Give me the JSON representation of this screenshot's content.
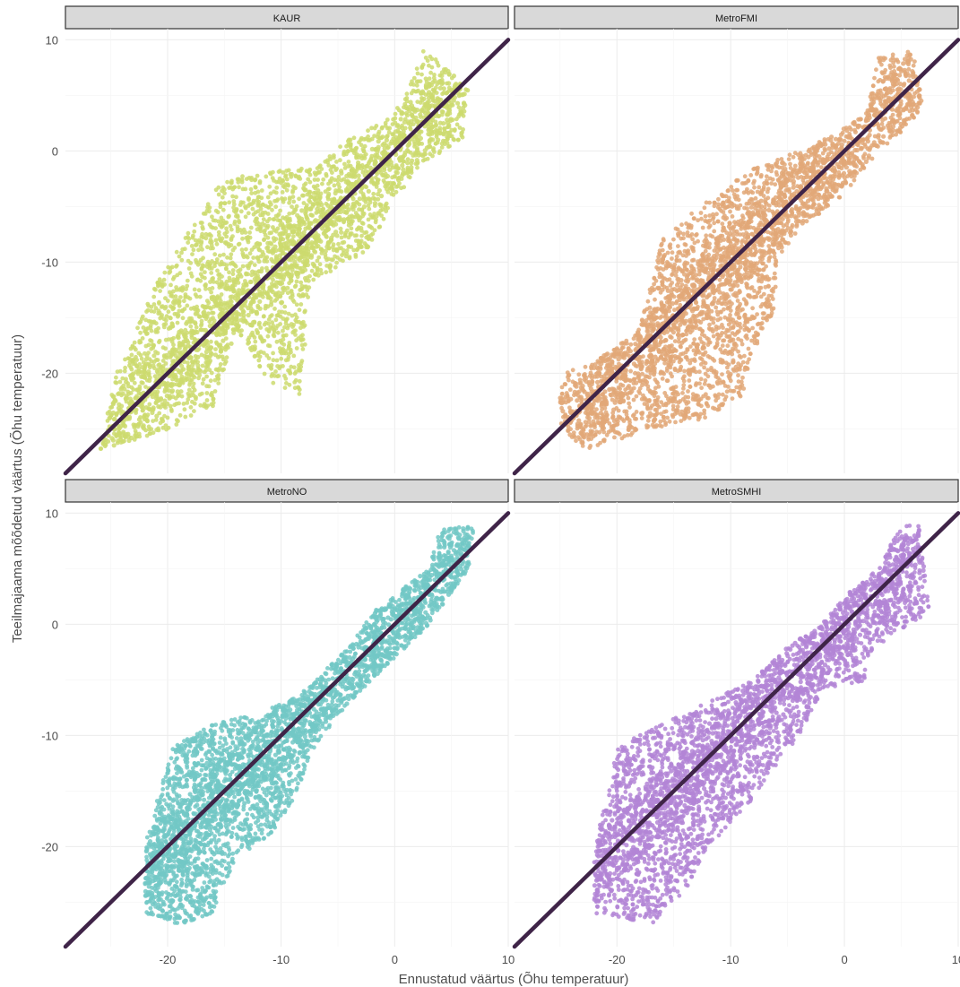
{
  "chart_data": {
    "type": "scatter",
    "facet_layout": "2x2",
    "xlabel": "Ennustatud väärtus (Õhu temperatuur)",
    "ylabel": "Teeilmajaama mõõdetud väärtus (Õhu temperatuur)",
    "xlim": [
      -29,
      10
    ],
    "ylim": [
      -29,
      11
    ],
    "x_ticks": [
      -20,
      -10,
      0,
      10
    ],
    "y_ticks": [
      -20,
      -10,
      0,
      10
    ],
    "grid": true,
    "reference_line": {
      "type": "identity",
      "slope": 1,
      "intercept": 0,
      "color": "#3f2448"
    },
    "panels": [
      {
        "title": "KAUR",
        "color": "#cddb6e",
        "cloud": [
          [
            -26,
            -27
          ],
          [
            -24.5,
            -20
          ],
          [
            -21,
            -12
          ],
          [
            -15.5,
            -3
          ],
          [
            -13,
            -2
          ],
          [
            -7,
            -1.5
          ],
          [
            -3.5,
            1.5
          ],
          [
            -0.5,
            3
          ],
          [
            1,
            5
          ],
          [
            2.5,
            9
          ],
          [
            4,
            8
          ],
          [
            6.5,
            5.5
          ],
          [
            6,
            1
          ],
          [
            2,
            -1.5
          ],
          [
            -2,
            -8
          ],
          [
            -2.5,
            -9
          ],
          [
            -7.5,
            -12
          ],
          [
            -8,
            -19
          ],
          [
            -8,
            -22
          ],
          [
            -11,
            -21
          ],
          [
            -14,
            -16
          ],
          [
            -16,
            -23
          ],
          [
            -21,
            -25.5
          ],
          [
            -23,
            -26
          ]
        ]
      },
      {
        "title": "MetroFMI",
        "color": "#e2a878",
        "cloud": [
          [
            -25,
            -24.5
          ],
          [
            -25,
            -20
          ],
          [
            -22,
            -19
          ],
          [
            -18,
            -16
          ],
          [
            -16,
            -8
          ],
          [
            -14,
            -6
          ],
          [
            -10,
            -3
          ],
          [
            -8,
            -1.5
          ],
          [
            -4,
            0
          ],
          [
            -1,
            1.5
          ],
          [
            2,
            3.5
          ],
          [
            3,
            8.5
          ],
          [
            6,
            9
          ],
          [
            7,
            3.5
          ],
          [
            3,
            0
          ],
          [
            0,
            -4
          ],
          [
            -4,
            -7
          ],
          [
            -6,
            -10
          ],
          [
            -6,
            -14
          ],
          [
            -8,
            -18
          ],
          [
            -9,
            -22
          ],
          [
            -12,
            -24
          ],
          [
            -17,
            -25
          ],
          [
            -23,
            -27
          ]
        ]
      },
      {
        "title": "MetroNO",
        "color": "#72c8c5",
        "cloud": [
          [
            -22,
            -26
          ],
          [
            -22,
            -20
          ],
          [
            -21,
            -16
          ],
          [
            -19.5,
            -11
          ],
          [
            -16,
            -9
          ],
          [
            -12,
            -8
          ],
          [
            -8,
            -6
          ],
          [
            -4,
            -2
          ],
          [
            -2,
            1
          ],
          [
            0.5,
            3
          ],
          [
            3,
            5
          ],
          [
            4,
            8.5
          ],
          [
            7,
            9
          ],
          [
            6.5,
            5
          ],
          [
            3,
            0
          ],
          [
            -1,
            -4
          ],
          [
            -4,
            -7
          ],
          [
            -7,
            -11
          ],
          [
            -9,
            -16
          ],
          [
            -11,
            -19
          ],
          [
            -14,
            -21
          ],
          [
            -16,
            -26
          ],
          [
            -19,
            -27
          ]
        ]
      },
      {
        "title": "MetroSMHI",
        "color": "#b385d6",
        "cloud": [
          [
            -22,
            -26
          ],
          [
            -22,
            -20
          ],
          [
            -21,
            -16
          ],
          [
            -20,
            -11
          ],
          [
            -16,
            -9
          ],
          [
            -12,
            -7
          ],
          [
            -8,
            -5
          ],
          [
            -5,
            -2
          ],
          [
            -2,
            0
          ],
          [
            0.5,
            3
          ],
          [
            3,
            5
          ],
          [
            5,
            9
          ],
          [
            6.5,
            9
          ],
          [
            7.5,
            1
          ],
          [
            4,
            -1
          ],
          [
            2,
            -3
          ],
          [
            2,
            -5
          ],
          [
            -2,
            -6
          ],
          [
            -4,
            -10
          ],
          [
            -7,
            -14
          ],
          [
            -9,
            -17
          ],
          [
            -12,
            -20
          ],
          [
            -14,
            -24
          ],
          [
            -17,
            -27
          ]
        ]
      }
    ]
  }
}
